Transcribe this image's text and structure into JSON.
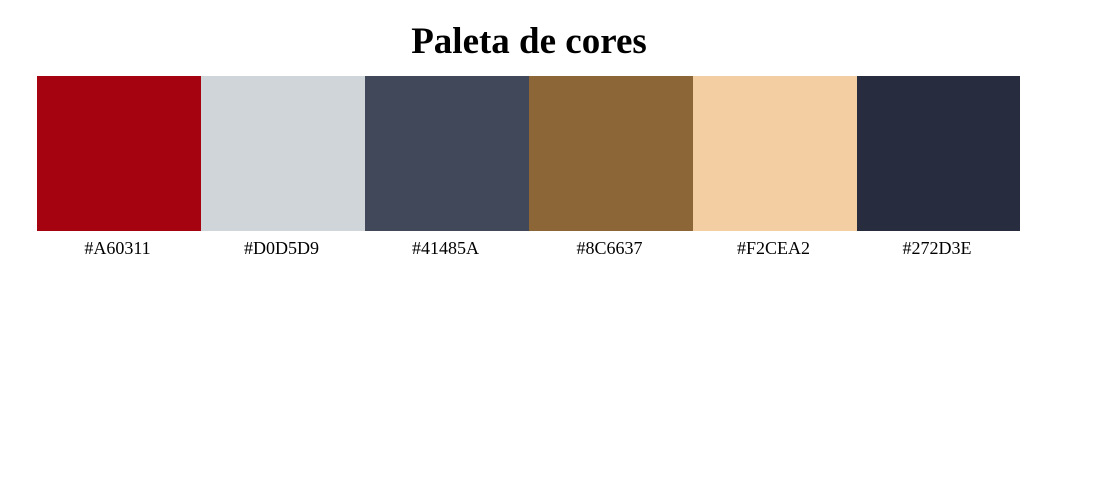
{
  "title": "Paleta de cores",
  "palette": [
    {
      "hex": "#A60311",
      "label": "#A60311"
    },
    {
      "hex": "#D0D5D9",
      "label": "#D0D5D9"
    },
    {
      "hex": "#41485A",
      "label": "#41485A"
    },
    {
      "hex": "#8C6637",
      "label": "#8C6637"
    },
    {
      "hex": "#F2CEA2",
      "label": "#F2CEA2"
    },
    {
      "hex": "#272D3E",
      "label": "#272D3E"
    }
  ]
}
